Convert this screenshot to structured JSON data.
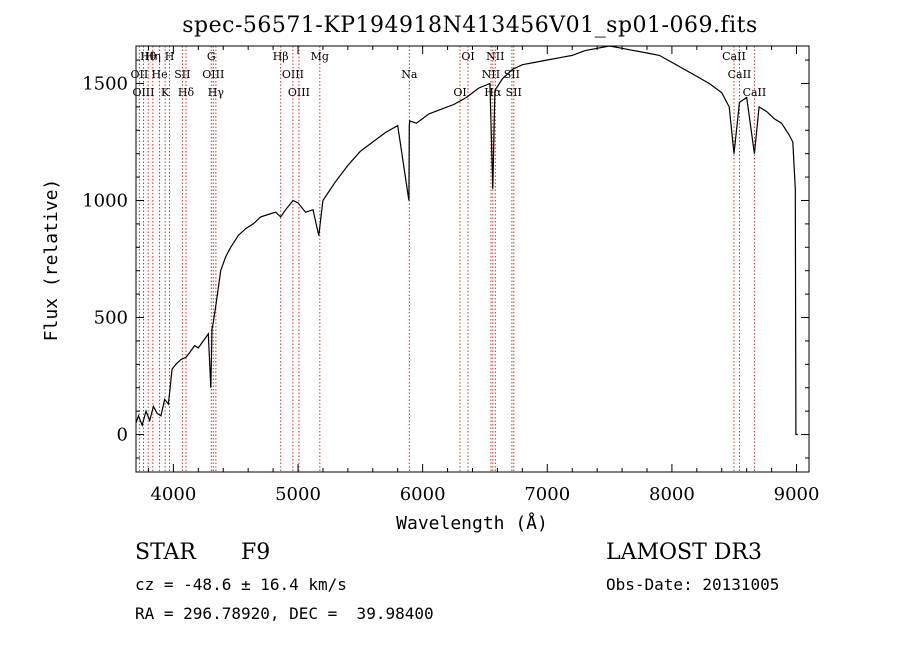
{
  "chart_data": {
    "type": "line",
    "title": "spec-56571-KP194918N413456V01_sp01-069.fits",
    "xlabel": "Wavelength (Å)",
    "ylabel": "Flux (relative)",
    "xlim": [
      3700,
      9100
    ],
    "ylim": [
      -160,
      1660
    ],
    "xticks": [
      4000,
      5000,
      6000,
      7000,
      8000,
      9000
    ],
    "xtick_labels": [
      "4000",
      "5000",
      "6000",
      "7000",
      "8000",
      "9000"
    ],
    "yticks": [
      0,
      500,
      1000,
      1500
    ],
    "ytick_labels": [
      "0",
      "500",
      "1000",
      "1500"
    ],
    "grid": false,
    "series": [
      {
        "name": "flux",
        "x": [
          3700,
          3720,
          3750,
          3780,
          3810,
          3840,
          3870,
          3900,
          3930,
          3960,
          3990,
          4020,
          4060,
          4101,
          4130,
          4170,
          4200,
          4240,
          4280,
          4300,
          4310,
          4320,
          4340,
          4380,
          4420,
          4460,
          4520,
          4580,
          4640,
          4700,
          4760,
          4820,
          4861,
          4900,
          4960,
          5000,
          5060,
          5120,
          5167,
          5200,
          5300,
          5400,
          5500,
          5600,
          5700,
          5800,
          5890,
          5893,
          5896,
          5950,
          6050,
          6150,
          6250,
          6350,
          6450,
          6540,
          6563,
          6580,
          6640,
          6720,
          6800,
          6900,
          7000,
          7100,
          7200,
          7300,
          7400,
          7500,
          7600,
          7700,
          7800,
          7900,
          8000,
          8100,
          8200,
          8300,
          8400,
          8460,
          8498,
          8542,
          8600,
          8662,
          8700,
          8760,
          8820,
          8880,
          8940,
          8970,
          8990,
          8995,
          9000,
          9010
        ],
        "y": [
          50,
          80,
          40,
          100,
          60,
          120,
          90,
          80,
          150,
          130,
          280,
          300,
          320,
          330,
          350,
          380,
          370,
          400,
          430,
          200,
          450,
          480,
          550,
          700,
          760,
          800,
          850,
          880,
          900,
          930,
          940,
          950,
          930,
          960,
          1000,
          990,
          950,
          960,
          850,
          1000,
          1080,
          1150,
          1210,
          1250,
          1290,
          1320,
          1000,
          1320,
          1340,
          1330,
          1370,
          1390,
          1410,
          1440,
          1480,
          1500,
          1050,
          1470,
          1520,
          1560,
          1580,
          1590,
          1600,
          1610,
          1620,
          1640,
          1650,
          1660,
          1650,
          1640,
          1630,
          1620,
          1590,
          1560,
          1530,
          1500,
          1460,
          1400,
          1200,
          1420,
          1440,
          1200,
          1400,
          1380,
          1350,
          1330,
          1280,
          1250,
          1050,
          0,
          0,
          0
        ]
      }
    ],
    "lines": [
      {
        "label": "Hθ",
        "wavelength": 3798
      },
      {
        "label": "OII",
        "wavelength": 3727
      },
      {
        "label": "OIII",
        "wavelength": 3760
      },
      {
        "label": "Hη",
        "wavelength": 3835
      },
      {
        "label": "He",
        "wavelength": 3889
      },
      {
        "label": "K",
        "wavelength": 3934
      },
      {
        "label": "H",
        "wavelength": 3969
      },
      {
        "label": "SII",
        "wavelength": 4072
      },
      {
        "label": "Hδ",
        "wavelength": 4101
      },
      {
        "label": "G",
        "wavelength": 4304
      },
      {
        "label": "OIII",
        "wavelength": 4320
      },
      {
        "label": "Hγ",
        "wavelength": 4341
      },
      {
        "label": "Hβ",
        "wavelength": 4861
      },
      {
        "label": "OIII",
        "wavelength": 4959
      },
      {
        "label": "OIII",
        "wavelength": 5007
      },
      {
        "label": "Mg",
        "wavelength": 5175
      },
      {
        "label": "Na",
        "wavelength": 5893
      },
      {
        "label": "OI",
        "wavelength": 6300
      },
      {
        "label": "OI",
        "wavelength": 6364
      },
      {
        "label": "NII",
        "wavelength": 6548
      },
      {
        "label": "Hα",
        "wavelength": 6563
      },
      {
        "label": "NII",
        "wavelength": 6583
      },
      {
        "label": "SII",
        "wavelength": 6716
      },
      {
        "label": "SII",
        "wavelength": 6731
      },
      {
        "label": "CaII",
        "wavelength": 8498
      },
      {
        "label": "CaII",
        "wavelength": 8542
      },
      {
        "label": "CaII",
        "wavelength": 8662
      }
    ]
  },
  "info": {
    "object_type": "STAR",
    "subclass": "F9",
    "survey": "LAMOST DR3",
    "redshift": "cz = -48.6 ± 16.4 km/s",
    "obs_date": "Obs-Date: 20131005",
    "coords": "RA = 296.78920, DEC =  39.98400"
  },
  "colors": {
    "line_markers": "#c0392b",
    "spectrum": "#000000"
  }
}
